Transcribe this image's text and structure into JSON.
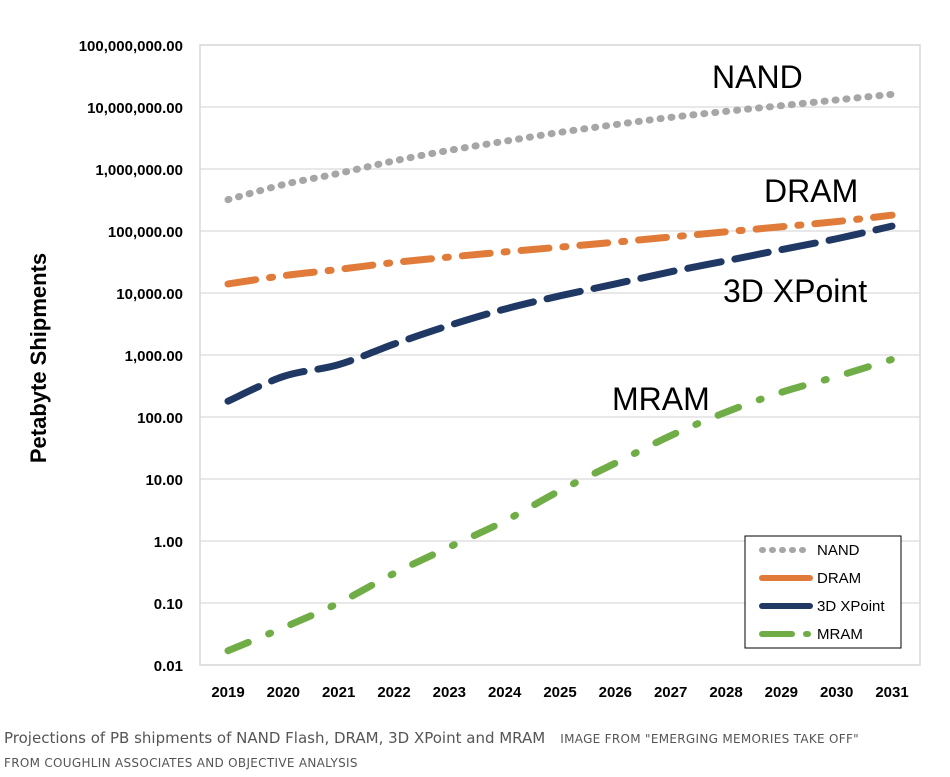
{
  "chart_data": {
    "type": "line",
    "ylabel": "Petabyte Shipments",
    "xlabel": "",
    "yscale": "log",
    "ylim": [
      0.01,
      100000000
    ],
    "yticks": [
      0.01,
      0.1,
      1,
      10,
      100,
      1000,
      10000,
      100000,
      1000000,
      10000000,
      100000000
    ],
    "ytick_labels": [
      "0.01",
      "0.10",
      "1.00",
      "10.00",
      "100.00",
      "1,000.00",
      "10,000.00",
      "100,000.00",
      "1,000,000.00",
      "10,000,000.00",
      "100,000,000.00"
    ],
    "x": [
      2019,
      2020,
      2021,
      2022,
      2023,
      2024,
      2025,
      2026,
      2027,
      2028,
      2029,
      2030,
      2031
    ],
    "xtick_labels": [
      "2019",
      "2020",
      "2021",
      "2022",
      "2023",
      "2024",
      "2025",
      "2026",
      "2027",
      "2028",
      "2029",
      "2030",
      "2031"
    ],
    "grid": true,
    "legend": "bottom-right",
    "series": [
      {
        "name": "NAND",
        "color": "#a6a6a6",
        "style": "dotted",
        "values": [
          320000,
          560000,
          850000,
          1350000,
          2000000,
          2800000,
          3900000,
          5200000,
          6800000,
          8500000,
          10500000,
          13000000,
          16000000
        ]
      },
      {
        "name": "DRAM",
        "color": "#e07b39",
        "style": "dashdot",
        "values": [
          14000,
          19000,
          24000,
          31000,
          38000,
          46000,
          55000,
          66000,
          80000,
          97000,
          117000,
          142000,
          180000
        ]
      },
      {
        "name": "3D XPoint",
        "color": "#203864",
        "style": "longdash",
        "values": [
          180,
          450,
          700,
          1500,
          3000,
          5500,
          9000,
          14000,
          22000,
          33000,
          50000,
          75000,
          120000
        ]
      },
      {
        "name": "MRAM",
        "color": "#70ad47",
        "style": "longdashdot",
        "values": [
          0.017,
          0.04,
          0.1,
          0.3,
          0.8,
          2.1,
          6.5,
          18,
          50,
          120,
          250,
          450,
          850
        ]
      }
    ],
    "annotations": [
      "NAND",
      "DRAM",
      "3D XPoint",
      "MRAM"
    ]
  },
  "caption": {
    "main": "Projections of PB shipments of NAND Flash, DRAM, 3D XPoint and MRAM",
    "credit_line1": "Image from \"Emerging Memories Take Off\"",
    "credit_line2": "from Coughlin Associates and Objective Analysis"
  }
}
